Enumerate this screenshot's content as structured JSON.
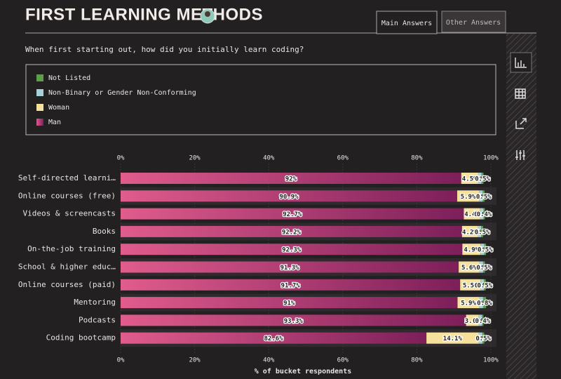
{
  "header": {
    "title": "FIRST LEARNING METHODS"
  },
  "tabs": [
    "Main Answers",
    "Other Answers"
  ],
  "question": "When first starting out, how did you initially learn coding?",
  "chart_data": {
    "type": "stacked-bar-horizontal",
    "x_label": "% of bucket respondents",
    "categories": [
      "Self-directed learni…",
      "Online courses (free)",
      "Videos & screencasts",
      "Books",
      "On-the-job training",
      "School & higher educ…",
      "Online courses (paid)",
      "Mentoring",
      "Podcasts",
      "Coding bootcamp"
    ],
    "series": [
      {
        "name": "Man",
        "color": "#d9558a",
        "values": [
          92,
          90.9,
          92.7,
          92.2,
          92.3,
          91.3,
          91.7,
          91,
          93.3,
          82.6
        ],
        "value_labels": [
          "92%",
          "90.9%",
          "92.7%",
          "92.2%",
          "92.3%",
          "91.3%",
          "91.7%",
          "91%",
          "93.3%",
          "82.6%"
        ]
      },
      {
        "name": "Woman",
        "color": "#f6e19c",
        "values": [
          4.5,
          5.9,
          4.4,
          4.2,
          4.9,
          5.6,
          5.5,
          5.9,
          3.4,
          14.1
        ],
        "value_labels": [
          "4.5%",
          "5.9%",
          "4.4%",
          "4.2%",
          "4.9%",
          "5.6%",
          "5.5%",
          "5.9%",
          "3.4%",
          "14.1%"
        ]
      },
      {
        "name": "Non-Binary or Gender Non-Conforming",
        "color": "#a8d0d8",
        "values": [
          1,
          1,
          0.9,
          1,
          1,
          1,
          0.9,
          1,
          0.9,
          1
        ],
        "value_labels": [
          "1%",
          "1%",
          "0.9%",
          "1%",
          "1%",
          "1%",
          "0.9%",
          "1%",
          "0.9%",
          "1%"
        ]
      },
      {
        "name": "Not Listed",
        "color": "#5c9e4a",
        "values": [
          0.5,
          0.5,
          0.4,
          0.5,
          0.5,
          0.5,
          0.5,
          0.8,
          0.4,
          0.5
        ],
        "value_labels": [
          "0.5%",
          "0.5%",
          "0.4%",
          "0.5%",
          "0.5%",
          "0.5%",
          "0.5%",
          "0.8%",
          "0.4%",
          "0.5%"
        ]
      }
    ],
    "legend_order": [
      3,
      2,
      1,
      0
    ],
    "xlim": [
      0,
      100
    ],
    "xticks": [
      {
        "value": 0,
        "label": "0%"
      },
      {
        "value": 20,
        "label": "20%"
      },
      {
        "value": 40,
        "label": "40%"
      },
      {
        "value": 60,
        "label": "60%"
      },
      {
        "value": 80,
        "label": "80%"
      },
      {
        "value": 100,
        "label": "100%"
      }
    ],
    "grid": true
  }
}
